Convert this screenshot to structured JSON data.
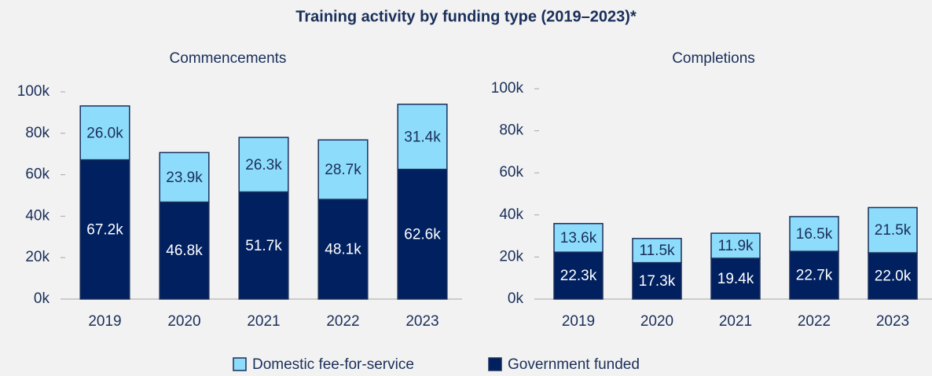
{
  "title": "Training activity by funding type (2019–2023)*",
  "legend": [
    {
      "name": "Domestic fee-for-service",
      "color": "#8ddcfb"
    },
    {
      "name": "Government funded",
      "color": "#002060"
    }
  ],
  "chart_data": [
    {
      "type": "stacked_bar",
      "title": "Commencements",
      "categories": [
        "2019",
        "2020",
        "2021",
        "2022",
        "2023"
      ],
      "series": [
        {
          "values": [
            26000,
            23900,
            26300,
            28700,
            31400
          ],
          "value_labels": [
            "26.0k",
            "23.9k",
            "26.3k",
            "28.7k",
            "31.4k"
          ]
        },
        {
          "values": [
            67200,
            46800,
            51700,
            48100,
            62600
          ],
          "value_labels": [
            "67.2k",
            "46.8k",
            "51.7k",
            "48.1k",
            "62.6k"
          ]
        }
      ],
      "ylim": [
        0,
        100000
      ],
      "yticks": [
        {
          "value": 0,
          "label": "0k"
        },
        {
          "value": 20000,
          "label": "20k"
        },
        {
          "value": 40000,
          "label": "40k"
        },
        {
          "value": 60000,
          "label": "60k"
        },
        {
          "value": 80000,
          "label": "80k"
        },
        {
          "value": 100000,
          "label": "100k"
        }
      ]
    },
    {
      "type": "stacked_bar",
      "title": "Completions",
      "categories": [
        "2019",
        "2020",
        "2021",
        "2022",
        "2023"
      ],
      "series": [
        {
          "values": [
            13600,
            11500,
            11900,
            16500,
            21500
          ],
          "value_labels": [
            "13.6k",
            "11.5k",
            "11.9k",
            "16.5k",
            "21.5k"
          ]
        },
        {
          "values": [
            22300,
            17300,
            19400,
            22700,
            22000
          ],
          "value_labels": [
            "22.3k",
            "17.3k",
            "19.4k",
            "22.7k",
            "22.0k"
          ]
        }
      ],
      "ylim": [
        0,
        100000
      ],
      "yticks": [
        {
          "value": 0,
          "label": "0k"
        },
        {
          "value": 20000,
          "label": "20k"
        },
        {
          "value": 40000,
          "label": "40k"
        },
        {
          "value": 60000,
          "label": "60k"
        },
        {
          "value": 80000,
          "label": "80k"
        },
        {
          "value": 100000,
          "label": "100k"
        }
      ]
    }
  ]
}
